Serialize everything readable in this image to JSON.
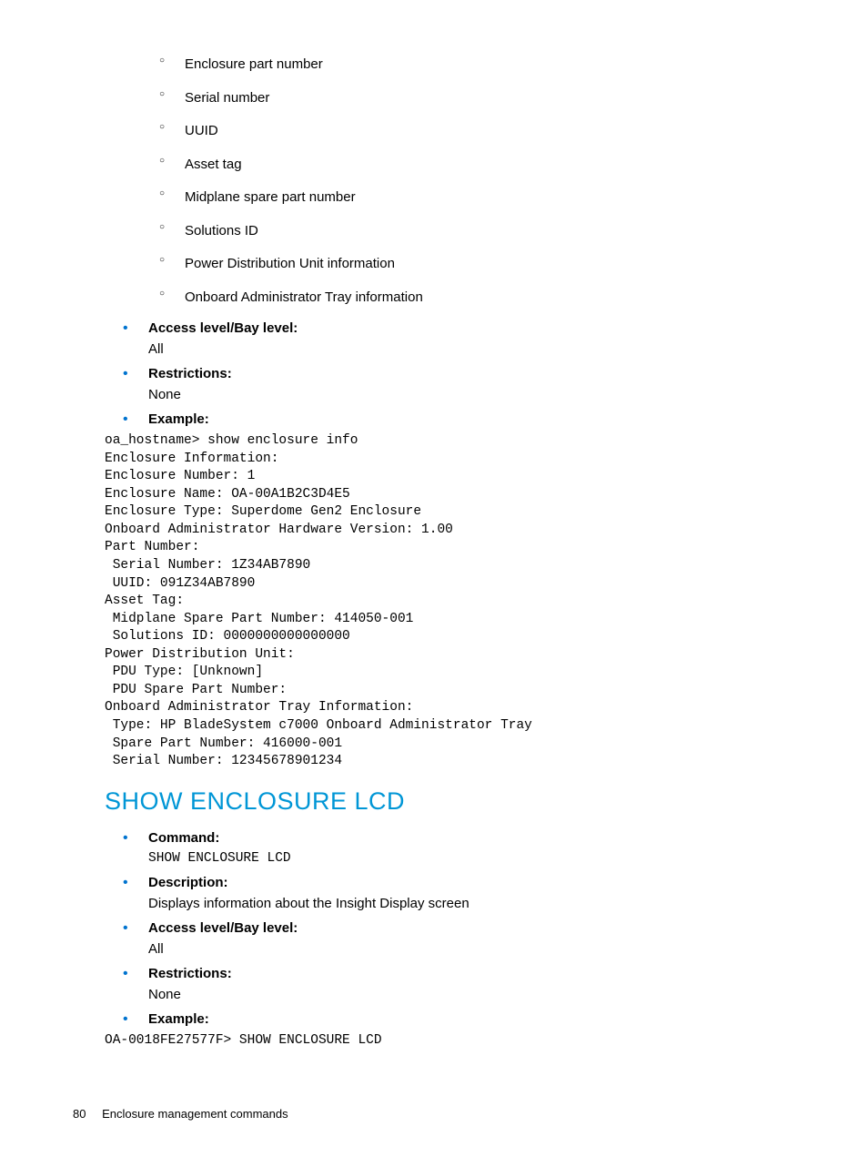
{
  "top_sub_items": [
    "Enclosure part number",
    "Serial number",
    "UUID",
    "Asset tag",
    "Midplane spare part number",
    "Solutions ID",
    "Power Distribution Unit information",
    "Onboard Administrator Tray information"
  ],
  "section1": {
    "access_label": "Access level/Bay level:",
    "access_value": "All",
    "restrictions_label": "Restrictions:",
    "restrictions_value": "None",
    "example_label": "Example:",
    "example_code": "oa_hostname> show enclosure info\nEnclosure Information:\nEnclosure Number: 1\nEnclosure Name: OA-00A1B2C3D4E5\nEnclosure Type: Superdome Gen2 Enclosure\nOnboard Administrator Hardware Version: 1.00\nPart Number:\n Serial Number: 1Z34AB7890\n UUID: 091Z34AB7890\nAsset Tag:\n Midplane Spare Part Number: 414050-001\n Solutions ID: 0000000000000000\nPower Distribution Unit:\n PDU Type: [Unknown]\n PDU Spare Part Number:\nOnboard Administrator Tray Information:\n Type: HP BladeSystem c7000 Onboard Administrator Tray\n Spare Part Number: 416000-001\n Serial Number: 12345678901234"
  },
  "heading": "SHOW ENCLOSURE LCD",
  "section2": {
    "command_label": "Command:",
    "command_value": "SHOW ENCLOSURE LCD",
    "description_label": "Description:",
    "description_value": "Displays information about the Insight Display screen",
    "access_label": "Access level/Bay level:",
    "access_value": "All",
    "restrictions_label": "Restrictions:",
    "restrictions_value": "None",
    "example_label": "Example:",
    "example_code": "OA-0018FE27577F> SHOW ENCLOSURE LCD"
  },
  "footer": {
    "page": "80",
    "title": "Enclosure management commands"
  },
  "colors": {
    "bullet_blue": "#0073cf",
    "heading_blue": "#0096d6",
    "text": "#000000",
    "background": "#ffffff"
  },
  "fonts": {
    "body": "Arial",
    "code": "Courier New",
    "body_size_pt": 11,
    "code_size_pt": 11,
    "heading_size_pt": 20
  }
}
